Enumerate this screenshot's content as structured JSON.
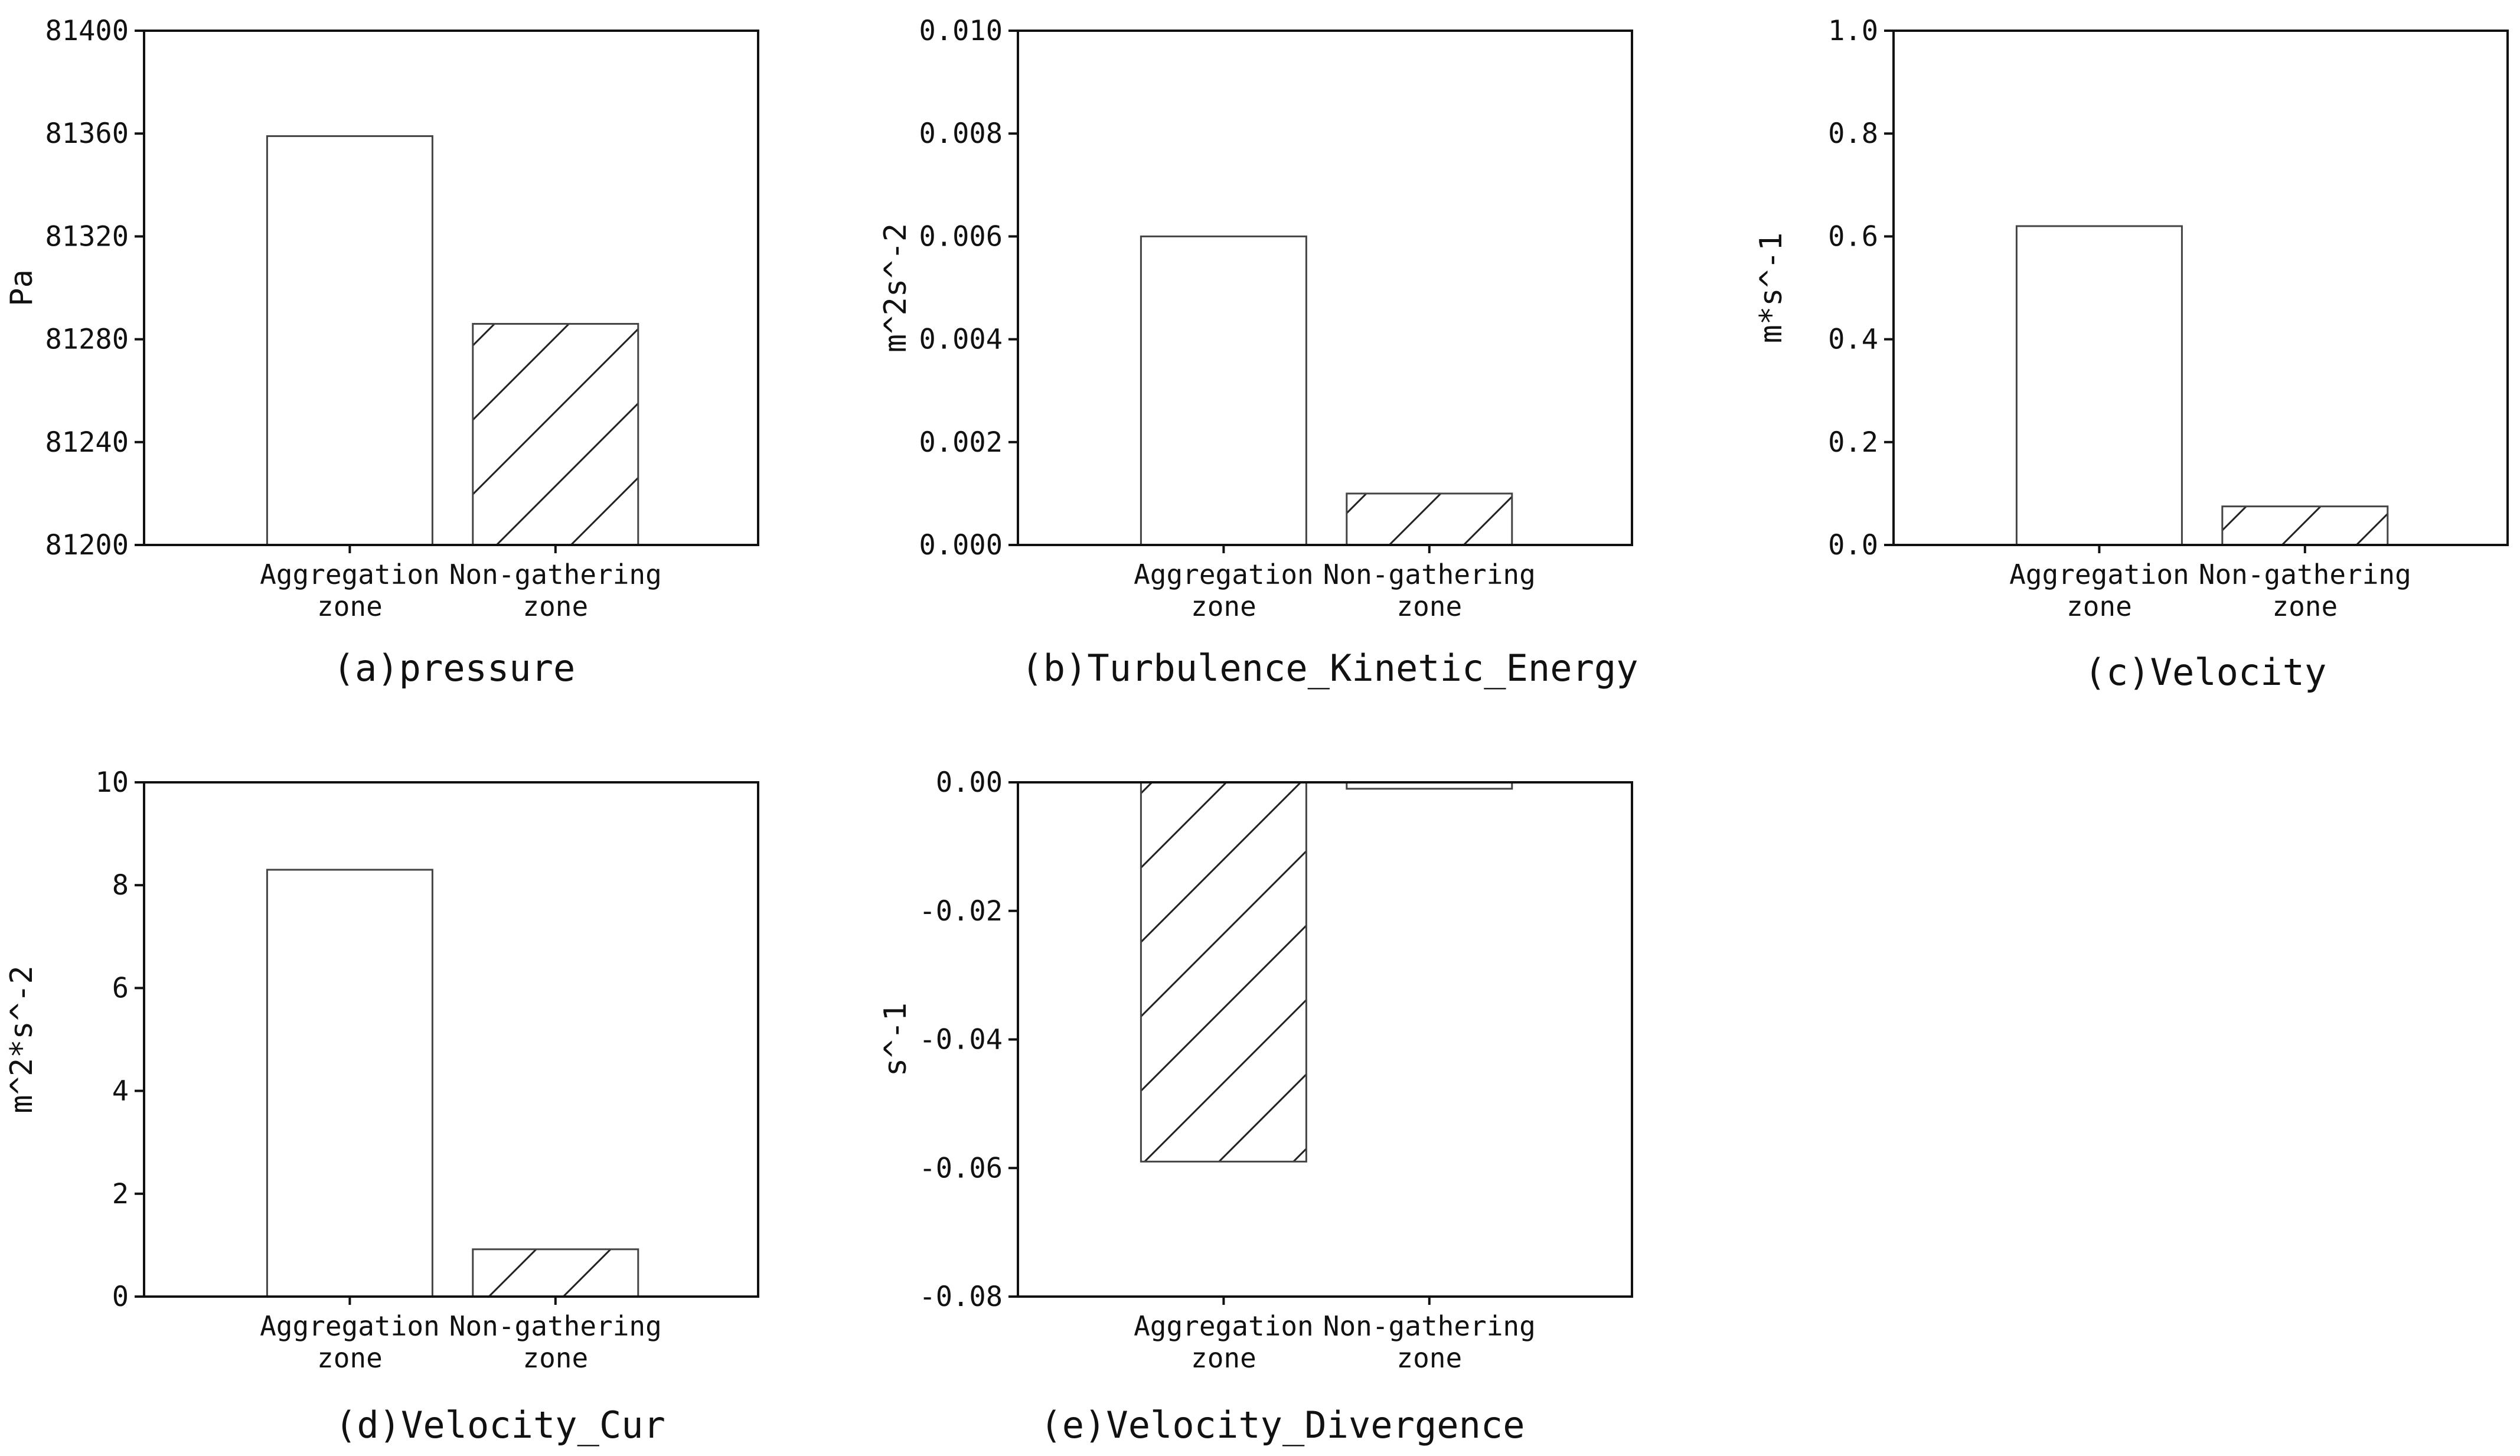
{
  "chart_data": [
    {
      "type": "bar",
      "caption": "(a)pressure",
      "ylabel": "Pa",
      "categories": [
        "Aggregation zone",
        "Non-gathering zone"
      ],
      "category_lines": [
        [
          "Aggregation",
          "zone"
        ],
        [
          "Non-gathering",
          "zone"
        ]
      ],
      "values": [
        81359,
        81286
      ],
      "ylim": [
        81200,
        81400
      ],
      "yticks": [
        81200,
        81240,
        81280,
        81320,
        81360,
        81400
      ],
      "ytick_labels": [
        "81200",
        "81240",
        "81280",
        "81320",
        "81360",
        "81400"
      ],
      "hatched": [
        false,
        true
      ]
    },
    {
      "type": "bar",
      "caption": "(b)Turbulence_Kinetic_Energy",
      "ylabel": "m^2s^-2",
      "categories": [
        "Aggregation zone",
        "Non-gathering zone"
      ],
      "category_lines": [
        [
          "Aggregation",
          "zone"
        ],
        [
          "Non-gathering",
          "zone"
        ]
      ],
      "values": [
        0.006,
        0.001
      ],
      "ylim": [
        0,
        0.01
      ],
      "yticks": [
        0,
        0.002,
        0.004,
        0.006,
        0.008,
        0.01
      ],
      "ytick_labels": [
        "0.000",
        "0.002",
        "0.004",
        "0.006",
        "0.008",
        "0.010"
      ],
      "hatched": [
        false,
        true
      ]
    },
    {
      "type": "bar",
      "caption": "(c)Velocity",
      "ylabel": "m*s^-1",
      "categories": [
        "Aggregation zone",
        "Non-gathering zone"
      ],
      "category_lines": [
        [
          "Aggregation",
          "zone"
        ],
        [
          "Non-gathering",
          "zone"
        ]
      ],
      "values": [
        0.62,
        0.075
      ],
      "ylim": [
        0,
        1.0
      ],
      "yticks": [
        0,
        0.2,
        0.4,
        0.6,
        0.8,
        1.0
      ],
      "ytick_labels": [
        "0.0",
        "0.2",
        "0.4",
        "0.6",
        "0.8",
        "1.0"
      ],
      "hatched": [
        false,
        true
      ]
    },
    {
      "type": "bar",
      "caption": "(d)Velocity_Cur",
      "ylabel": "m^2*s^-2",
      "categories": [
        "Aggregation zone",
        "Non-gathering zone"
      ],
      "category_lines": [
        [
          "Aggregation",
          "zone"
        ],
        [
          "Non-gathering",
          "zone"
        ]
      ],
      "values": [
        8.3,
        0.92
      ],
      "ylim": [
        0,
        10
      ],
      "yticks": [
        0,
        2,
        4,
        6,
        8,
        10
      ],
      "ytick_labels": [
        "0",
        "2",
        "4",
        "6",
        "8",
        "10"
      ],
      "hatched": [
        false,
        true
      ]
    },
    {
      "type": "bar",
      "caption": "(e)Velocity_Divergence",
      "ylabel": "s^-1",
      "categories": [
        "Aggregation zone",
        "Non-gathering zone"
      ],
      "category_lines": [
        [
          "Aggregation",
          "zone"
        ],
        [
          "Non-gathering",
          "zone"
        ]
      ],
      "values": [
        -0.059,
        -0.001
      ],
      "ylim": [
        -0.08,
        0
      ],
      "yticks": [
        -0.08,
        -0.06,
        -0.04,
        -0.02,
        0
      ],
      "ytick_labels": [
        "-0.08",
        "-0.06",
        "-0.04",
        "-0.02",
        "0.00"
      ],
      "hatched": [
        true,
        false
      ]
    }
  ]
}
